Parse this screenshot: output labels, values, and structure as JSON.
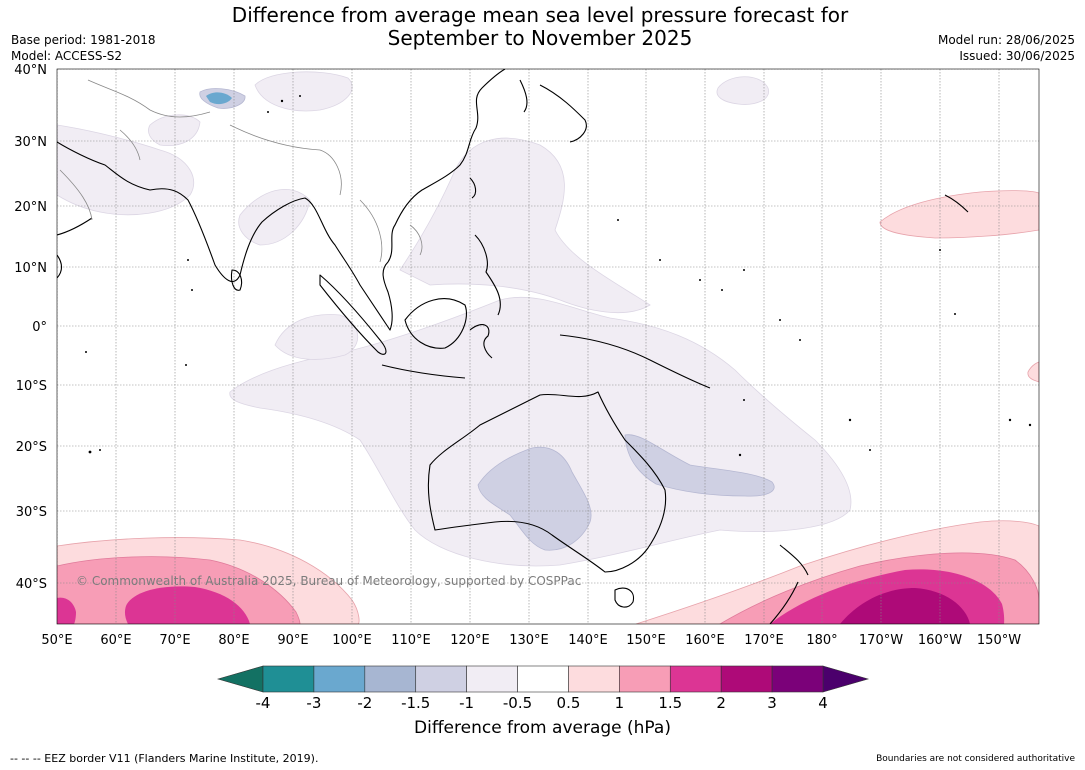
{
  "title_line1": "Difference from average mean sea level pressure forecast for",
  "title_line2": "September to November 2025",
  "base_period": "Base period: 1981-2018",
  "model": "Model: ACCESS-S2",
  "model_run": "Model run: 28/06/2025",
  "issued": "Issued: 30/06/2025",
  "lat_labels": [
    "40°N",
    "30°N",
    "20°N",
    "10°N",
    "0°",
    "10°S",
    "20°S",
    "30°S",
    "40°S"
  ],
  "lon_labels": [
    "50°E",
    "60°E",
    "70°E",
    "80°E",
    "90°E",
    "100°E",
    "110°E",
    "120°E",
    "130°E",
    "140°E",
    "150°E",
    "160°E",
    "170°E",
    "180°",
    "170°W",
    "160°W",
    "150°W"
  ],
  "copyright": "© Commonwealth of Australia 2025, Bureau of Meteorology, supported by COSPPac",
  "colorbar": {
    "ticks": [
      "-4",
      "-3",
      "-2",
      "-1.5",
      "-1",
      "-0.5",
      "0.5",
      "1",
      "1.5",
      "2",
      "3",
      "4"
    ],
    "colors": [
      "#137163",
      "#1f8f95",
      "#6aa8cf",
      "#a7b6d2",
      "#cfd0e3",
      "#f1edf4",
      "#ffffff",
      "#fddcde",
      "#f79db6",
      "#dc3594",
      "#ae0a78",
      "#7b0179",
      "#4b006c"
    ],
    "label": "Difference from average (hPa)"
  },
  "footer_left": "--  --  -- EEZ border V11 (Flanders Marine Institute, 2019).",
  "footer_right": "Boundaries are not considered authoritative"
}
